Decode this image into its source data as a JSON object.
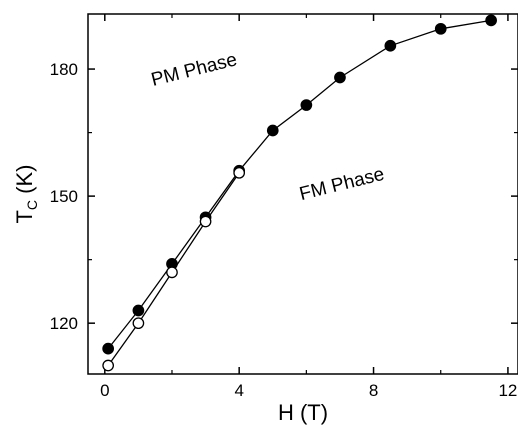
{
  "chart_data": {
    "type": "scatter",
    "xlabel": "H (T)",
    "ylabel_main": "T",
    "ylabel_sub": "C",
    "ylabel_unit": " (K)",
    "xlim": [
      -0.5,
      12.3
    ],
    "ylim": [
      108,
      193
    ],
    "x_ticks": [
      0,
      4,
      8,
      12
    ],
    "y_ticks": [
      120,
      150,
      180
    ],
    "grid": false,
    "series": [
      {
        "marker": "filled-circle",
        "x": [
          0.1,
          1,
          2,
          3,
          4,
          5,
          6,
          7,
          8.5,
          10,
          11.5
        ],
        "y": [
          114,
          123,
          134,
          145,
          156,
          165.5,
          171.5,
          178,
          185.5,
          189.5,
          191.5
        ]
      },
      {
        "marker": "open-circle",
        "x": [
          0.1,
          1,
          2,
          3,
          4
        ],
        "y": [
          110,
          120,
          132,
          144,
          155.5
        ]
      }
    ],
    "annotations": [
      {
        "text": "PM Phase",
        "x": 2.7,
        "y": 178.5,
        "rotation": -14
      },
      {
        "text": "FM Phase",
        "x": 7.1,
        "y": 151.5,
        "rotation": -14
      }
    ]
  }
}
